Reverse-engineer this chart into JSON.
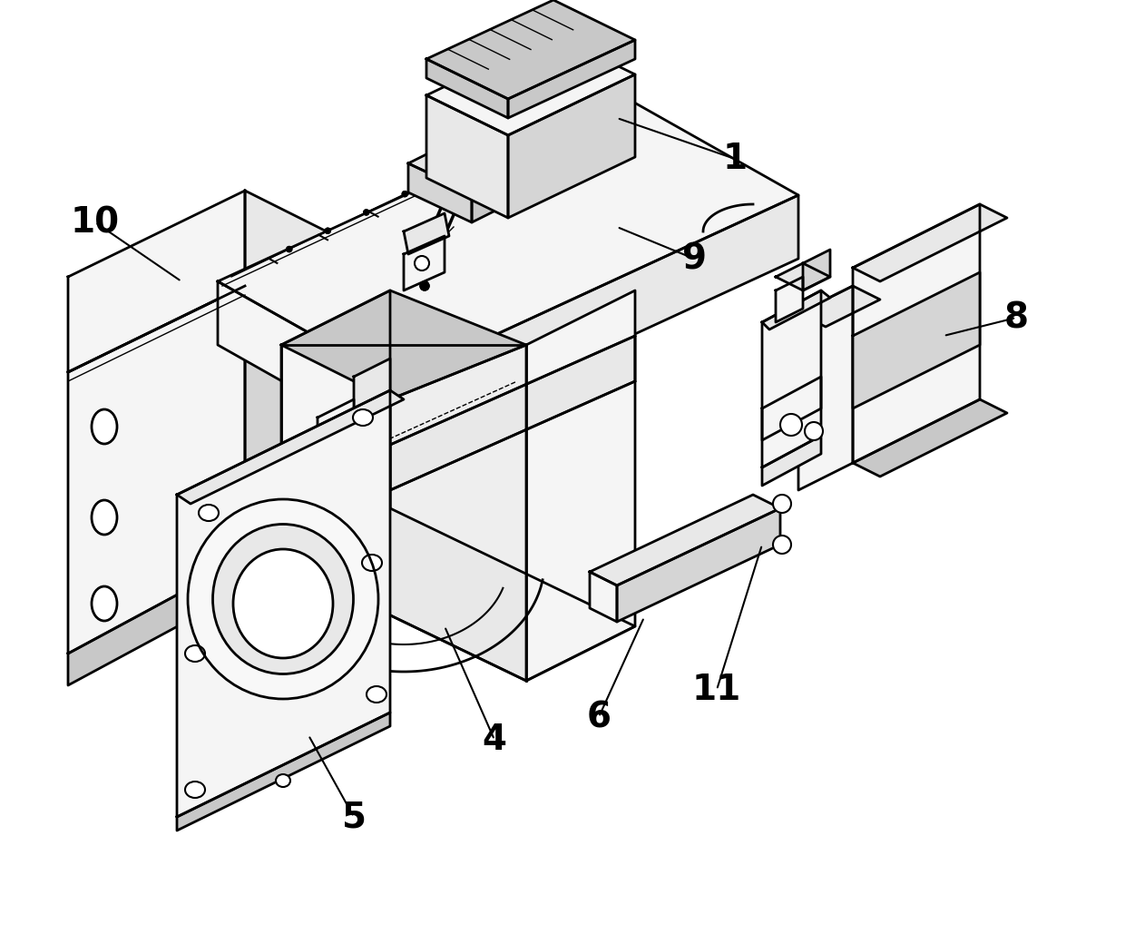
{
  "background_color": "#ffffff",
  "line_color": "#000000",
  "lw": 2.0,
  "label_fontsize": 28,
  "figsize": [
    12.4,
    10.4
  ],
  "dpi": 100,
  "face_light": "#f5f5f5",
  "face_mid": "#e8e8e8",
  "face_dark": "#d5d5d5",
  "face_darker": "#c8c8c8"
}
